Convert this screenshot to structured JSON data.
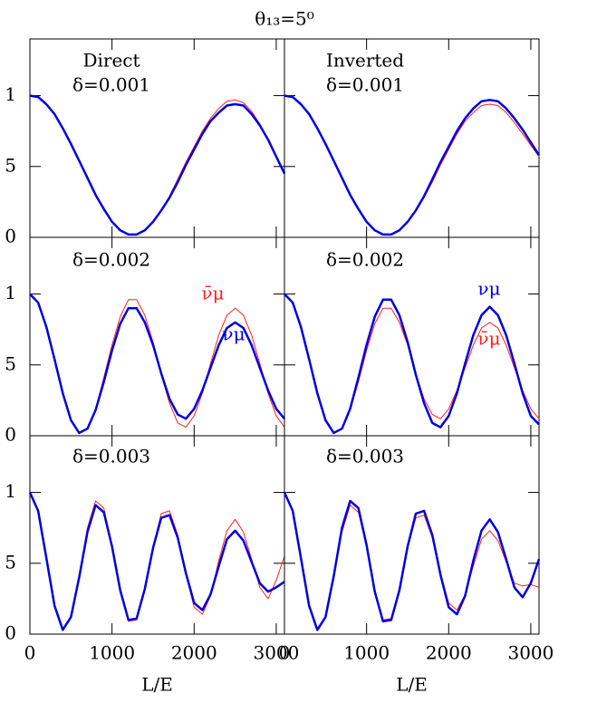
{
  "title": "θ₁₃=5⁰",
  "chart_data": [
    {
      "type": "line",
      "labels": [
        "Direct",
        "δ=0.001"
      ],
      "x": [
        0,
        100,
        200,
        300,
        400,
        500,
        600,
        700,
        800,
        900,
        1000,
        1100,
        1200,
        1300,
        1400,
        1500,
        1600,
        1700,
        1800,
        1900,
        2000,
        2100,
        2200,
        2300,
        2400,
        2500,
        2600,
        2700,
        2800,
        2900,
        3000,
        3100
      ],
      "xlim": [
        0,
        3100
      ],
      "ylim": [
        0,
        1.4
      ],
      "yticks": [
        0,
        {
          "value": 0.5,
          "label": "5"
        },
        1
      ],
      "series": [
        {
          "color": "#ff2020",
          "values": [
            1,
            0.99,
            0.94,
            0.87,
            0.77,
            0.66,
            0.54,
            0.42,
            0.3,
            0.2,
            0.11,
            0.05,
            0.02,
            0.02,
            0.05,
            0.11,
            0.19,
            0.29,
            0.41,
            0.53,
            0.64,
            0.75,
            0.84,
            0.91,
            0.96,
            0.97,
            0.95,
            0.89,
            0.8,
            0.69,
            0.57,
            0.45
          ]
        },
        {
          "color": "#0000e0",
          "values": [
            1,
            0.99,
            0.94,
            0.87,
            0.77,
            0.66,
            0.54,
            0.42,
            0.3,
            0.2,
            0.11,
            0.05,
            0.02,
            0.02,
            0.05,
            0.11,
            0.19,
            0.28,
            0.39,
            0.51,
            0.62,
            0.73,
            0.82,
            0.88,
            0.93,
            0.94,
            0.93,
            0.87,
            0.79,
            0.69,
            0.57,
            0.45
          ]
        }
      ]
    },
    {
      "type": "line",
      "labels": [
        "Inverted",
        "δ=0.001"
      ],
      "x": [
        0,
        100,
        200,
        300,
        400,
        500,
        600,
        700,
        800,
        900,
        1000,
        1100,
        1200,
        1300,
        1400,
        1500,
        1600,
        1700,
        1800,
        1900,
        2000,
        2100,
        2200,
        2300,
        2400,
        2500,
        2600,
        2700,
        2800,
        2900,
        3000,
        3100
      ],
      "xlim": [
        0,
        3100
      ],
      "ylim": [
        0,
        1.4
      ],
      "series": [
        {
          "color": "#ff2020",
          "values": [
            1,
            0.99,
            0.94,
            0.87,
            0.77,
            0.66,
            0.54,
            0.42,
            0.3,
            0.2,
            0.11,
            0.05,
            0.02,
            0.02,
            0.05,
            0.11,
            0.19,
            0.28,
            0.39,
            0.51,
            0.62,
            0.73,
            0.82,
            0.88,
            0.93,
            0.94,
            0.93,
            0.88,
            0.81,
            0.73,
            0.65,
            0.57
          ]
        },
        {
          "color": "#0000e0",
          "values": [
            1,
            0.99,
            0.94,
            0.87,
            0.77,
            0.66,
            0.54,
            0.42,
            0.3,
            0.2,
            0.11,
            0.05,
            0.02,
            0.02,
            0.05,
            0.11,
            0.19,
            0.29,
            0.41,
            0.53,
            0.64,
            0.75,
            0.84,
            0.91,
            0.96,
            0.97,
            0.96,
            0.91,
            0.84,
            0.76,
            0.67,
            0.58
          ]
        }
      ]
    },
    {
      "type": "line",
      "labels": [
        "δ=0.002"
      ],
      "x": [
        0,
        100,
        200,
        300,
        400,
        500,
        600,
        700,
        800,
        900,
        1000,
        1100,
        1200,
        1300,
        1400,
        1500,
        1600,
        1700,
        1800,
        1900,
        2000,
        2100,
        2200,
        2300,
        2400,
        2500,
        2600,
        2700,
        2800,
        2900,
        3000,
        3100
      ],
      "xlim": [
        0,
        3100
      ],
      "ylim": [
        0,
        1.4
      ],
      "yticks": [
        0,
        {
          "value": 0.5,
          "label": "5"
        },
        1
      ],
      "series": [
        {
          "name": "ν̄μ",
          "color": "#ff2020",
          "values": [
            1,
            0.94,
            0.77,
            0.54,
            0.3,
            0.11,
            0.02,
            0.05,
            0.19,
            0.41,
            0.64,
            0.84,
            0.96,
            0.96,
            0.85,
            0.66,
            0.43,
            0.23,
            0.09,
            0.06,
            0.14,
            0.3,
            0.51,
            0.71,
            0.85,
            0.9,
            0.85,
            0.71,
            0.51,
            0.3,
            0.14,
            0.06
          ]
        },
        {
          "name": "νμ",
          "color": "#0000e0",
          "values": [
            1,
            0.94,
            0.77,
            0.54,
            0.3,
            0.11,
            0.02,
            0.05,
            0.18,
            0.38,
            0.6,
            0.79,
            0.9,
            0.9,
            0.8,
            0.64,
            0.44,
            0.26,
            0.15,
            0.12,
            0.19,
            0.32,
            0.48,
            0.64,
            0.76,
            0.8,
            0.76,
            0.64,
            0.48,
            0.32,
            0.19,
            0.12
          ]
        }
      ]
    },
    {
      "type": "line",
      "labels": [
        "δ=0.002"
      ],
      "x": [
        0,
        100,
        200,
        300,
        400,
        500,
        600,
        700,
        800,
        900,
        1000,
        1100,
        1200,
        1300,
        1400,
        1500,
        1600,
        1700,
        1800,
        1900,
        2000,
        2100,
        2200,
        2300,
        2400,
        2500,
        2600,
        2700,
        2800,
        2900,
        3000,
        3100
      ],
      "xlim": [
        0,
        3100
      ],
      "ylim": [
        0,
        1.4
      ],
      "series": [
        {
          "name": "ν̄μ",
          "color": "#ff2020",
          "values": [
            1,
            0.94,
            0.77,
            0.54,
            0.3,
            0.11,
            0.02,
            0.05,
            0.18,
            0.38,
            0.6,
            0.79,
            0.9,
            0.9,
            0.8,
            0.64,
            0.44,
            0.26,
            0.15,
            0.12,
            0.19,
            0.32,
            0.48,
            0.64,
            0.76,
            0.8,
            0.76,
            0.64,
            0.48,
            0.32,
            0.19,
            0.12
          ]
        },
        {
          "name": "νμ",
          "color": "#0000e0",
          "values": [
            1,
            0.94,
            0.77,
            0.54,
            0.3,
            0.11,
            0.02,
            0.05,
            0.19,
            0.41,
            0.64,
            0.84,
            0.96,
            0.96,
            0.85,
            0.66,
            0.43,
            0.23,
            0.09,
            0.06,
            0.14,
            0.3,
            0.51,
            0.71,
            0.85,
            0.91,
            0.85,
            0.71,
            0.51,
            0.3,
            0.14,
            0.08
          ]
        }
      ]
    },
    {
      "type": "line",
      "labels": [
        "δ=0.003"
      ],
      "x": [
        0,
        100,
        200,
        300,
        400,
        500,
        600,
        700,
        800,
        900,
        1000,
        1100,
        1200,
        1300,
        1400,
        1500,
        1600,
        1700,
        1800,
        1900,
        2000,
        2100,
        2200,
        2300,
        2400,
        2500,
        2600,
        2700,
        2800,
        2900,
        3000,
        3100
      ],
      "xlim": [
        0,
        3100
      ],
      "ylim": [
        0,
        1.4
      ],
      "yticks": [
        0,
        {
          "value": 0.5,
          "label": "5"
        },
        1
      ],
      "xticks": [
        0,
        1000,
        2000,
        3000
      ],
      "xlabel": "L/E",
      "series": [
        {
          "color": "#ff2020",
          "values": [
            1,
            0.87,
            0.54,
            0.2,
            0.03,
            0.12,
            0.41,
            0.75,
            0.94,
            0.89,
            0.63,
            0.3,
            0.09,
            0.1,
            0.31,
            0.62,
            0.85,
            0.87,
            0.7,
            0.42,
            0.19,
            0.14,
            0.27,
            0.52,
            0.73,
            0.81,
            0.72,
            0.53,
            0.33,
            0.25,
            0.38,
            0.55
          ]
        },
        {
          "color": "#0000e0",
          "values": [
            1,
            0.87,
            0.54,
            0.2,
            0.03,
            0.12,
            0.4,
            0.72,
            0.91,
            0.86,
            0.62,
            0.31,
            0.1,
            0.11,
            0.32,
            0.61,
            0.82,
            0.84,
            0.68,
            0.43,
            0.22,
            0.17,
            0.28,
            0.48,
            0.67,
            0.73,
            0.66,
            0.51,
            0.36,
            0.3,
            0.33,
            0.37
          ]
        }
      ]
    },
    {
      "type": "line",
      "labels": [
        "δ=0.003"
      ],
      "x": [
        0,
        100,
        200,
        300,
        400,
        500,
        600,
        700,
        800,
        900,
        1000,
        1100,
        1200,
        1300,
        1400,
        1500,
        1600,
        1700,
        1800,
        1900,
        2000,
        2100,
        2200,
        2300,
        2400,
        2500,
        2600,
        2700,
        2800,
        2900,
        3000,
        3100
      ],
      "xlim": [
        0,
        3100
      ],
      "ylim": [
        0,
        1.4
      ],
      "xticks": [
        0,
        1000,
        2000,
        3000
      ],
      "xlabel": "L/E",
      "series": [
        {
          "color": "#ff2020",
          "values": [
            1,
            0.87,
            0.54,
            0.2,
            0.03,
            0.12,
            0.4,
            0.72,
            0.91,
            0.86,
            0.62,
            0.31,
            0.1,
            0.11,
            0.32,
            0.61,
            0.82,
            0.84,
            0.68,
            0.43,
            0.22,
            0.17,
            0.28,
            0.48,
            0.67,
            0.73,
            0.66,
            0.51,
            0.36,
            0.34,
            0.35,
            0.33
          ]
        },
        {
          "color": "#0000e0",
          "values": [
            1,
            0.87,
            0.54,
            0.2,
            0.03,
            0.12,
            0.41,
            0.75,
            0.94,
            0.89,
            0.63,
            0.3,
            0.09,
            0.1,
            0.31,
            0.62,
            0.85,
            0.87,
            0.7,
            0.42,
            0.19,
            0.14,
            0.27,
            0.52,
            0.73,
            0.81,
            0.72,
            0.53,
            0.33,
            0.26,
            0.36,
            0.53
          ]
        }
      ]
    }
  ]
}
